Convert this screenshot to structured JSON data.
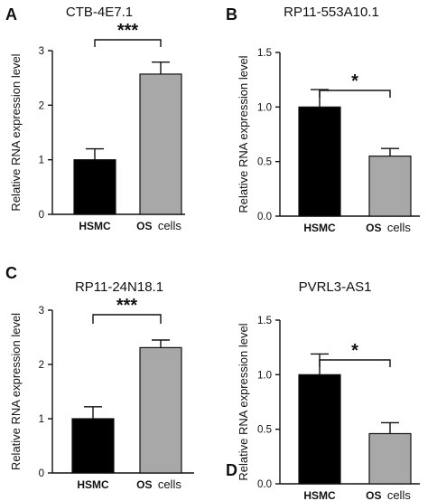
{
  "chart_data": [
    {
      "panel": "A",
      "type": "bar",
      "title": "CTB-4E7.1",
      "ylabel": "Relative RNA expression level",
      "categories": [
        "HSMC",
        "OS cells"
      ],
      "values": [
        1.0,
        2.57
      ],
      "errors": [
        0.2,
        0.22
      ],
      "bar_colors": [
        "#000000",
        "#a8a8a8"
      ],
      "ylim": [
        0,
        3
      ],
      "yticks": [
        "0",
        "1",
        "2",
        "3"
      ],
      "yticks_values": [
        0,
        1,
        2,
        3
      ],
      "significance": "***"
    },
    {
      "panel": "B",
      "type": "bar",
      "title": "RP11-553A10.1",
      "ylabel": "Relative RNA expression level",
      "categories": [
        "HSMC",
        "OS cells"
      ],
      "values": [
        1.0,
        0.55
      ],
      "errors": [
        0.16,
        0.07
      ],
      "bar_colors": [
        "#000000",
        "#a8a8a8"
      ],
      "ylim": [
        0,
        1.5
      ],
      "yticks": [
        "0.0",
        "0.5",
        "1.0",
        "1.5"
      ],
      "yticks_values": [
        0,
        0.5,
        1.0,
        1.5
      ],
      "significance": "*"
    },
    {
      "panel": "C",
      "type": "bar",
      "title": "RP11-24N18.1",
      "ylabel": "Relative RNA expression level",
      "categories": [
        "HSMC",
        "OS cells"
      ],
      "values": [
        1.0,
        2.31
      ],
      "errors": [
        0.22,
        0.14
      ],
      "bar_colors": [
        "#000000",
        "#a8a8a8"
      ],
      "ylim": [
        0,
        3
      ],
      "yticks": [
        "0",
        "1",
        "2",
        "3"
      ],
      "yticks_values": [
        0,
        1,
        2,
        3
      ],
      "significance": "***"
    },
    {
      "panel": "D",
      "type": "bar",
      "title": "PVRL3-AS1",
      "ylabel": "Relative RNA expression level",
      "categories": [
        "HSMC",
        "OS cells"
      ],
      "values": [
        1.0,
        0.46
      ],
      "errors": [
        0.19,
        0.1
      ],
      "bar_colors": [
        "#000000",
        "#a8a8a8"
      ],
      "ylim": [
        0,
        1.5
      ],
      "yticks": [
        "0.0",
        "0.5",
        "1.0",
        "1.5"
      ],
      "yticks_values": [
        0,
        0.5,
        1.0,
        1.5
      ],
      "significance": "*"
    }
  ]
}
